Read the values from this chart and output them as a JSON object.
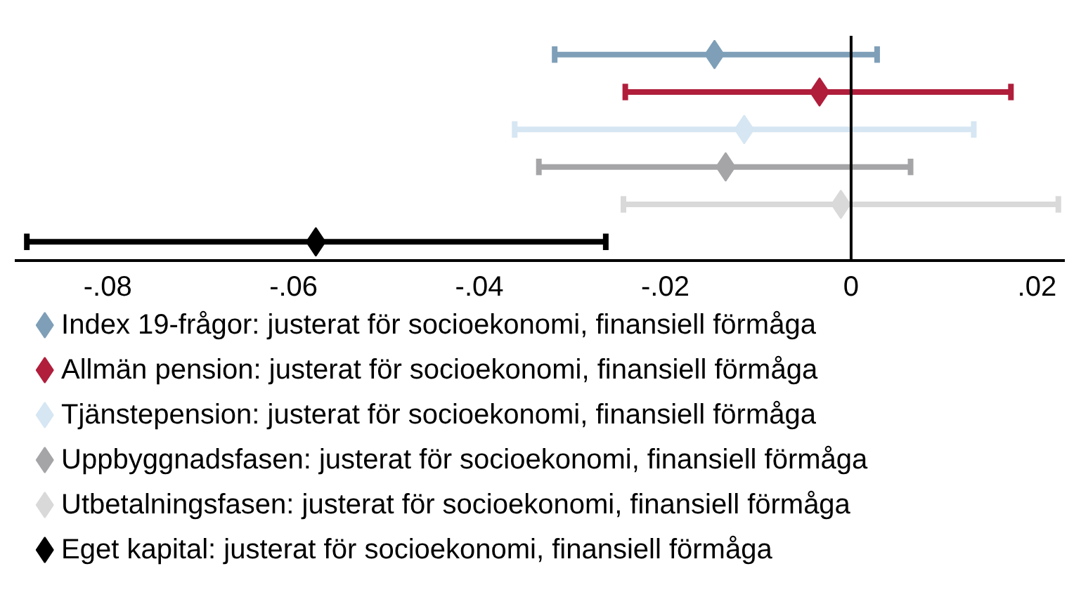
{
  "chart_data": {
    "type": "scatter",
    "orientation": "horizontal",
    "marker": "diamond",
    "legend": "bottom",
    "grid": false,
    "categories": [
      null,
      null,
      null,
      null,
      null,
      null
    ],
    "xlim": [
      -0.09,
      0.023
    ],
    "xticks": [
      {
        "value": -0.08,
        "label": "-.08"
      },
      {
        "value": -0.06,
        "label": "-.06"
      },
      {
        "value": -0.04,
        "label": "-.04"
      },
      {
        "value": -0.02,
        "label": "-.02"
      },
      0,
      {
        "value": 0.02,
        "label": ".02"
      }
    ],
    "tick_labels": "x",
    "ref_lines": [
      {
        "axis": "x",
        "value": 0,
        "color": "#000000"
      }
    ],
    "series": [
      {
        "name": "Index 19-frågor: justerat för socioekonomi, finansiell förmåga",
        "color": "#7f9fb8",
        "values": [
          -0.0147,
          null,
          null,
          null,
          null,
          null
        ],
        "errors": [
          [
            -0.0319,
            0.0028
          ],
          null,
          null,
          null,
          null,
          null
        ]
      },
      {
        "name": "Allmän pension: justerat för socioekonomi, finansiell förmåga",
        "color": "#b01e3c",
        "values": [
          null,
          -0.0034,
          null,
          null,
          null,
          null
        ],
        "errors": [
          null,
          [
            -0.0243,
            0.0172
          ],
          null,
          null,
          null,
          null
        ]
      },
      {
        "name": "Tjänstepension: justerat för socioekonomi, finansiell förmåga",
        "color": "#d6e6f3",
        "values": [
          null,
          null,
          -0.0115,
          null,
          null,
          null
        ],
        "errors": [
          null,
          null,
          [
            -0.0362,
            0.0132
          ],
          null,
          null,
          null
        ]
      },
      {
        "name": "Uppbyggnadsfasen: justerat för socioekonomi, finansiell förmåga",
        "color": "#a5a5a8",
        "values": [
          null,
          null,
          null,
          -0.0135,
          null,
          null
        ],
        "errors": [
          null,
          null,
          null,
          [
            -0.0336,
            0.0064
          ],
          null,
          null
        ]
      },
      {
        "name": "Utbetalningsfasen: justerat för socioekonomi, finansiell förmåga",
        "color": "#d9d9d9",
        "values": [
          null,
          null,
          null,
          null,
          -0.0011,
          null
        ],
        "errors": [
          null,
          null,
          null,
          null,
          [
            -0.0245,
            0.0223
          ],
          null
        ]
      },
      {
        "name": "Eget kapital: justerat för socioekonomi, finansiell förmåga",
        "color": "#000000",
        "values": [
          null,
          null,
          null,
          null,
          null,
          -0.0576
        ],
        "errors": [
          null,
          null,
          null,
          null,
          null,
          [
            -0.0887,
            -0.0264
          ]
        ]
      }
    ]
  }
}
